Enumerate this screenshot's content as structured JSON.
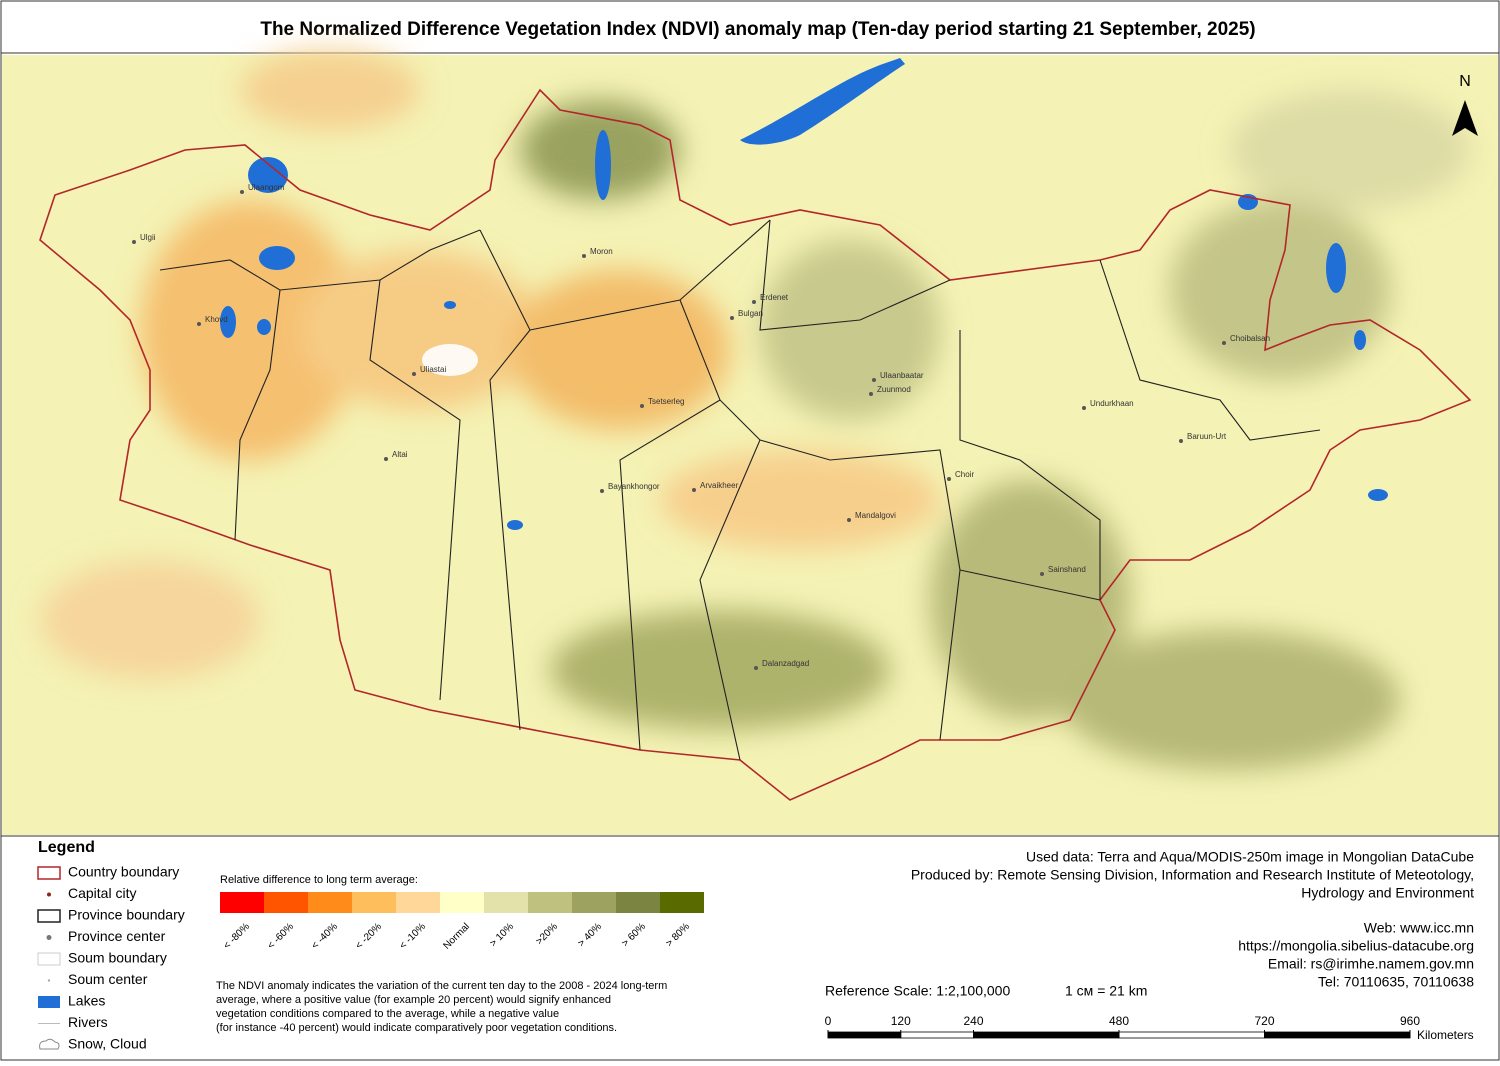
{
  "header": {
    "title": "The Normalized Difference Vegetation Index (NDVI) anomaly map (Ten-day period starting 21 September, 2025)"
  },
  "map": {
    "north": "N",
    "places": [
      "Ulaangom",
      "Ulgii",
      "Khovd",
      "Uliastai",
      "Altai",
      "Moron",
      "Bulgan",
      "Erdenet",
      "Tsetserleg",
      "Ulaanbaatar",
      "Zuunmod",
      "Bayankhongor",
      "Arvaikheer",
      "Mandalgovi",
      "Choir",
      "Undurkhaan",
      "Choibalsan",
      "Baruun-Urt",
      "Sainshand",
      "Dalanzadgad"
    ]
  },
  "legend": {
    "title": "Legend",
    "items": [
      "Country boundary",
      "Capital city",
      "Province boundary",
      "Province center",
      "Soum boundary",
      "Soum center",
      "Lakes",
      "Rivers",
      "Snow, Cloud"
    ]
  },
  "color_scale": {
    "title": "Relative difference to long term average:",
    "classes": [
      {
        "label": "< -80%",
        "color": "#ff0000"
      },
      {
        "label": "< -60%",
        "color": "#ff5500"
      },
      {
        "label": "< -40%",
        "color": "#ff8c1a"
      },
      {
        "label": "< -20%",
        "color": "#ffbe5c"
      },
      {
        "label": "< -10%",
        "color": "#ffd899"
      },
      {
        "label": "Normal",
        "color": "#ffffc8"
      },
      {
        "label": "> 10%",
        "color": "#e2e2aa"
      },
      {
        "label": ">20%",
        "color": "#bfc17f"
      },
      {
        "label": "> 40%",
        "color": "#9ea260"
      },
      {
        "label": "> 60%",
        "color": "#7b8440"
      },
      {
        "label": "> 80%",
        "color": "#586a00"
      }
    ]
  },
  "note": [
    "The NDVI anomaly indicates the variation of the current ten day to the 2008 - 2024 long-term",
    "average, where a positive value (for example 20 percent) would signify enhanced",
    "vegetation conditions compared to the average, while a negative value",
    "(for instance -40 percent) would indicate comparatively poor vegetation conditions."
  ],
  "credits": [
    "Used data: Terra and Aqua/MODIS-250m image in Mongolian DataCube",
    "Produced by: Remote Sensing Division, Information and Research Institute of Meteotology,",
    "Hydrology and Environment"
  ],
  "contacts": [
    "Web: www.icc.mn",
    "https://mongolia.sibelius-datacube.org",
    "Email: rs@irimhe.namem.gov.mn",
    "Tel: 70110635, 70110638"
  ],
  "reference_scale": "Reference Scale: 1:2,100,000",
  "conversion": "1 см = 21 km",
  "scale_bar": {
    "ticks": [
      0,
      120,
      240,
      480,
      720,
      960
    ],
    "unit": "Kilometers"
  }
}
